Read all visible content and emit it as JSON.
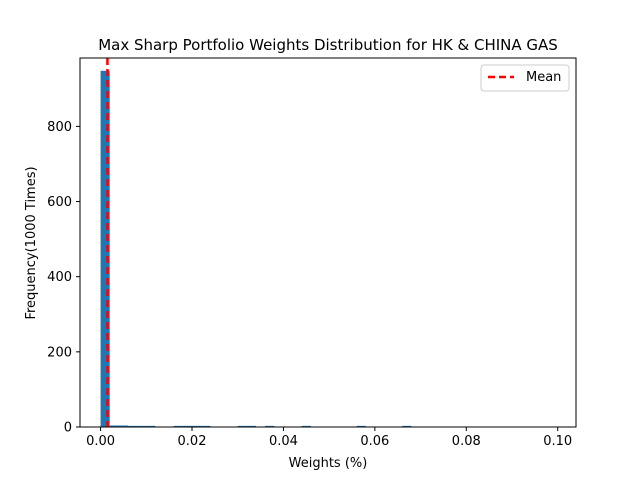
{
  "chart_data": {
    "type": "bar",
    "title": "Max Sharp Portfolio Weights Distribution for HK & CHINA GAS",
    "xlabel": "Weights (%)",
    "ylabel": "Frequency(1000 Times)",
    "xlim": [
      -0.0045,
      0.104
    ],
    "ylim": [
      0,
      982
    ],
    "xticks": [
      "0.00",
      "0.02",
      "0.04",
      "0.06",
      "0.08",
      "0.10"
    ],
    "yticks": [
      "0",
      "200",
      "400",
      "600",
      "800"
    ],
    "bar_color": "#1f77b4",
    "bin_width": 0.002,
    "bins": [
      {
        "x": 0.0,
        "count": 948
      },
      {
        "x": 0.002,
        "count": 4
      },
      {
        "x": 0.004,
        "count": 4
      },
      {
        "x": 0.006,
        "count": 3
      },
      {
        "x": 0.008,
        "count": 3
      },
      {
        "x": 0.01,
        "count": 3
      },
      {
        "x": 0.016,
        "count": 3
      },
      {
        "x": 0.018,
        "count": 3
      },
      {
        "x": 0.02,
        "count": 3
      },
      {
        "x": 0.022,
        "count": 3
      },
      {
        "x": 0.03,
        "count": 3
      },
      {
        "x": 0.032,
        "count": 3
      },
      {
        "x": 0.036,
        "count": 3
      },
      {
        "x": 0.044,
        "count": 3
      },
      {
        "x": 0.056,
        "count": 3
      },
      {
        "x": 0.066,
        "count": 3
      }
    ],
    "mean": {
      "x": 0.0015,
      "label": "Mean",
      "color": "#ff0000"
    },
    "legend_position": "top-right",
    "grid": false
  }
}
